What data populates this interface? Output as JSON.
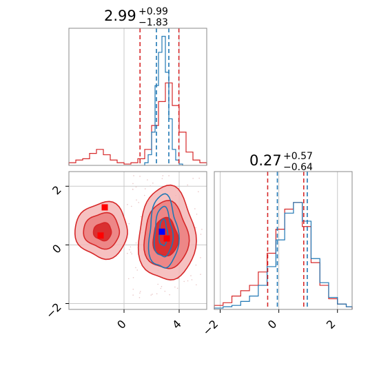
{
  "colors": {
    "red": "#d62728",
    "blue": "#1f77b4",
    "red_fill_light": "#f4b6b6",
    "red_fill_mid": "#eb7d7d",
    "red_fill_dark": "#d62728",
    "grid": "#c8c8c8",
    "marker_red": "#ff0000",
    "marker_blue": "#0000ff"
  },
  "chart_data": [
    {
      "panel": "marginal-param-1",
      "type": "histogram",
      "title": {
        "median": "2.99",
        "plus": "+0.99",
        "minus": "−1.83"
      },
      "xlim": [
        -4,
        6
      ],
      "grid": true,
      "quantile_lines": {
        "red": [
          1.16,
          3.98
        ],
        "blue": [
          2.35,
          3.25
        ]
      },
      "series": [
        {
          "name": "",
          "color": "red",
          "edges": [
            -4,
            -3.5,
            -3,
            -2.5,
            -2,
            -1.5,
            -1,
            -0.5,
            0,
            0.5,
            1,
            1.5,
            2,
            2.5,
            3,
            3.5,
            4,
            4.5,
            5,
            5.5,
            6
          ],
          "values": [
            0.02,
            0.04,
            0.05,
            0.09,
            0.12,
            0.08,
            0.04,
            0.02,
            0.01,
            0.02,
            0.05,
            0.12,
            0.3,
            0.48,
            0.62,
            0.45,
            0.25,
            0.1,
            0.04,
            0.02
          ]
        },
        {
          "name": "",
          "color": "blue",
          "edges": [
            1.5,
            1.75,
            2,
            2.25,
            2.5,
            2.75,
            3,
            3.25,
            3.5,
            3.75,
            4,
            4.25
          ],
          "values": [
            0.02,
            0.08,
            0.25,
            0.6,
            0.85,
            0.97,
            0.7,
            0.35,
            0.12,
            0.04,
            0.01
          ]
        }
      ]
    },
    {
      "panel": "marginal-param-2",
      "type": "histogram",
      "title": {
        "median": "0.27",
        "plus": "+0.57",
        "minus": "−0.64"
      },
      "xlim": [
        -2.2,
        2.5
      ],
      "xticks": [
        -2,
        0,
        2
      ],
      "xticklabels": [
        "−2",
        "0",
        "2"
      ],
      "grid": true,
      "quantile_lines": {
        "red": [
          -0.38,
          0.85
        ],
        "blue": [
          -0.05,
          0.97
        ]
      },
      "series": [
        {
          "name": "",
          "color": "red",
          "edges": [
            -2.2,
            -1.9,
            -1.6,
            -1.3,
            -1.0,
            -0.7,
            -0.4,
            -0.1,
            0.2,
            0.5,
            0.8,
            1.1,
            1.4,
            1.7,
            2.0,
            2.3,
            2.5
          ],
          "values": [
            0.03,
            0.05,
            0.1,
            0.14,
            0.18,
            0.28,
            0.42,
            0.6,
            0.75,
            0.8,
            0.62,
            0.35,
            0.18,
            0.08,
            0.04,
            0.02
          ]
        },
        {
          "name": "",
          "color": "blue",
          "edges": [
            -2.2,
            -1.9,
            -1.6,
            -1.3,
            -1.0,
            -0.7,
            -0.4,
            -0.1,
            0.2,
            0.5,
            0.8,
            1.1,
            1.4,
            1.7,
            2.0,
            2.3,
            2.5
          ],
          "values": [
            0.01,
            0.02,
            0.03,
            0.06,
            0.1,
            0.18,
            0.32,
            0.52,
            0.72,
            0.8,
            0.66,
            0.38,
            0.2,
            0.09,
            0.04,
            0.02
          ]
        }
      ]
    },
    {
      "panel": "joint-param-1-vs-param-2",
      "type": "contour",
      "xlim": [
        -4,
        6
      ],
      "ylim": [
        -2.2,
        2.5
      ],
      "xticks": [
        0,
        4
      ],
      "xticklabels": [
        "0",
        "4"
      ],
      "yticks": [
        -2,
        0,
        2
      ],
      "yticklabels": [
        "−2",
        "0",
        "2"
      ],
      "grid": true,
      "red_levels": [
        {
          "level": "outer",
          "blobs": [
            {
              "cx": -1.6,
              "cy": 0.5,
              "rx": 1.9,
              "ry": 0.95
            },
            {
              "cx": 3.1,
              "cy": 0.35,
              "rx": 2.05,
              "ry": 1.6
            }
          ]
        },
        {
          "level": "middle",
          "blobs": [
            {
              "cx": -1.6,
              "cy": 0.48,
              "rx": 1.3,
              "ry": 0.6
            },
            {
              "cx": 3.05,
              "cy": 0.3,
              "rx": 1.6,
              "ry": 1.15
            }
          ]
        },
        {
          "level": "inner",
          "blobs": [
            {
              "cx": -1.55,
              "cy": 0.45,
              "rx": 0.65,
              "ry": 0.3
            },
            {
              "cx": 3.0,
              "cy": 0.25,
              "rx": 0.9,
              "ry": 0.65
            }
          ]
        }
      ],
      "blue_levels": [
        {
          "cx": 2.85,
          "cy": 0.4,
          "rx": 1.05,
          "ry": 1.25
        },
        {
          "cx": 2.85,
          "cy": 0.4,
          "rx": 0.65,
          "ry": 0.85
        },
        {
          "cx": 2.85,
          "cy": 0.4,
          "rx": 0.3,
          "ry": 0.45
        }
      ],
      "markers": [
        {
          "color": "marker_red",
          "x": -1.4,
          "y": 1.28
        },
        {
          "color": "marker_red",
          "x": -1.7,
          "y": 0.32
        },
        {
          "color": "marker_red",
          "x": 3.1,
          "y": 0.22
        },
        {
          "color": "marker_blue",
          "x": 2.75,
          "y": 0.45
        }
      ]
    }
  ]
}
